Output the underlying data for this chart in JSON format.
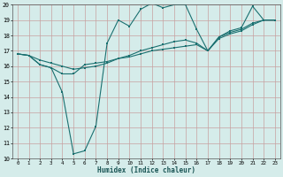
{
  "xlabel": "Humidex (Indice chaleur)",
  "ylabel": "",
  "xlim": [
    -0.5,
    23.5
  ],
  "ylim": [
    10,
    20
  ],
  "yticks": [
    10,
    11,
    12,
    13,
    14,
    15,
    16,
    17,
    18,
    19,
    20
  ],
  "xticks": [
    0,
    1,
    2,
    3,
    4,
    5,
    6,
    7,
    8,
    9,
    10,
    11,
    12,
    13,
    14,
    15,
    16,
    17,
    18,
    19,
    20,
    21,
    22,
    23
  ],
  "background_color": "#d5ecea",
  "grid_color": "#c8a0a0",
  "line_color": "#1a7070",
  "line1_x": [
    0,
    1,
    2,
    3,
    4,
    5,
    6,
    7,
    8,
    9,
    10,
    11,
    12,
    13,
    14,
    15,
    16,
    17,
    18,
    19,
    20,
    21,
    22,
    23
  ],
  "line1_y": [
    16.8,
    16.7,
    16.1,
    15.9,
    14.3,
    10.3,
    10.5,
    12.1,
    17.5,
    19.0,
    18.6,
    19.7,
    20.1,
    19.8,
    20.0,
    20.0,
    18.4,
    17.0,
    17.9,
    18.3,
    18.5,
    19.9,
    19.0,
    19.0
  ],
  "line2_x": [
    0,
    1,
    2,
    3,
    4,
    5,
    6,
    7,
    8,
    9,
    10,
    11,
    12,
    13,
    14,
    15,
    16,
    17,
    18,
    19,
    20,
    21,
    22,
    23
  ],
  "line2_y": [
    16.8,
    16.7,
    16.4,
    16.2,
    16.0,
    15.8,
    15.9,
    16.0,
    16.2,
    16.5,
    16.7,
    17.0,
    17.2,
    17.4,
    17.6,
    17.7,
    17.5,
    17.0,
    17.9,
    18.2,
    18.4,
    18.8,
    19.0,
    19.0
  ],
  "line3_x": [
    0,
    1,
    2,
    3,
    4,
    5,
    6,
    7,
    8,
    9,
    10,
    11,
    12,
    13,
    14,
    15,
    16,
    17,
    18,
    19,
    20,
    21,
    22,
    23
  ],
  "line3_y": [
    16.8,
    16.7,
    16.1,
    15.9,
    15.5,
    15.5,
    16.1,
    16.2,
    16.3,
    16.5,
    16.6,
    16.8,
    17.0,
    17.1,
    17.2,
    17.3,
    17.4,
    17.0,
    17.8,
    18.1,
    18.3,
    18.7,
    19.0,
    19.0
  ]
}
